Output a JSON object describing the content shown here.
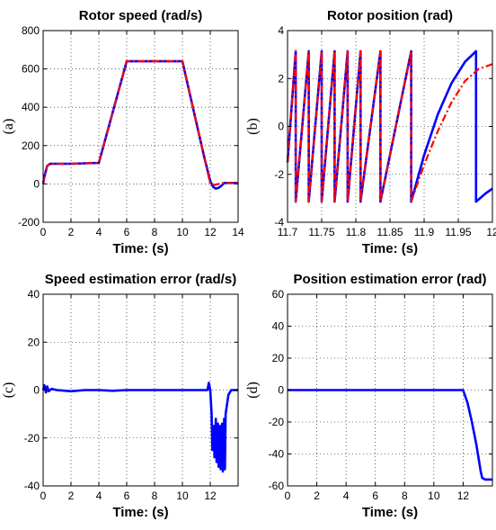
{
  "chart_data": [
    {
      "type": "line",
      "panel_label": "(a)",
      "title": "Rotor speed (rad/s)",
      "xlabel": "Time: (s)",
      "xlim": [
        0,
        14
      ],
      "ylim": [
        -200,
        800
      ],
      "xticks": [
        "0",
        "2",
        "4",
        "6",
        "8",
        "10",
        "12",
        "14"
      ],
      "yticks": [
        "-200",
        "0",
        "200",
        "400",
        "600",
        "800"
      ],
      "grid": true,
      "series": [
        {
          "color": "#0000ff",
          "style": "solid",
          "x": [
            0,
            0.1,
            0.3,
            0.5,
            2,
            4,
            6,
            10,
            11,
            11.6,
            12,
            12.2,
            12.4,
            12.6,
            12.8,
            13,
            13.5,
            14
          ],
          "y": [
            0,
            40,
            95,
            105,
            105,
            110,
            640,
            640,
            320,
            130,
            15,
            -15,
            -25,
            -20,
            -10,
            5,
            5,
            5
          ]
        },
        {
          "color": "#ff0000",
          "style": "dashdot",
          "x": [
            0,
            0.1,
            0.3,
            0.5,
            2,
            4,
            6,
            10,
            11,
            11.6,
            12,
            12.3,
            12.6,
            13,
            14
          ],
          "y": [
            0,
            40,
            95,
            105,
            105,
            110,
            640,
            640,
            320,
            130,
            0,
            -5,
            0,
            5,
            5
          ]
        }
      ]
    },
    {
      "type": "line",
      "panel_label": "(b)",
      "title": "Rotor position (rad)",
      "xlabel": "Time: (s)",
      "xlim": [
        11.7,
        12
      ],
      "ylim": [
        -4,
        4
      ],
      "xticks": [
        "11.7",
        "11.75",
        "11.8",
        "11.85",
        "11.9",
        "11.95",
        "12"
      ],
      "yticks": [
        "-4",
        "-2",
        "0",
        "2",
        "4"
      ],
      "grid": true,
      "series": [
        {
          "color": "#0000ff",
          "style": "solid",
          "x": [
            11.7,
            11.712,
            11.712,
            11.731,
            11.731,
            11.75,
            11.75,
            11.769,
            11.769,
            11.788,
            11.788,
            11.807,
            11.807,
            11.836,
            11.836,
            11.881,
            11.881,
            11.9,
            11.92,
            11.94,
            11.96,
            11.976,
            11.976,
            11.99,
            12
          ],
          "y": [
            -1.5,
            3.14,
            -3.14,
            3.14,
            -3.14,
            3.14,
            -3.14,
            3.14,
            -3.14,
            3.14,
            -3.14,
            3.14,
            -3.14,
            3.14,
            -3.14,
            3.14,
            -3.14,
            -1.2,
            0.5,
            1.8,
            2.7,
            3.14,
            -3.14,
            -2.8,
            -2.6
          ]
        },
        {
          "color": "#ff0000",
          "style": "dashdot",
          "x": [
            11.7,
            11.712,
            11.712,
            11.731,
            11.731,
            11.75,
            11.75,
            11.769,
            11.769,
            11.788,
            11.788,
            11.807,
            11.807,
            11.836,
            11.836,
            11.881,
            11.881,
            11.9,
            11.92,
            11.94,
            11.96,
            11.98,
            12
          ],
          "y": [
            -1.5,
            3.14,
            -3.14,
            3.14,
            -3.14,
            3.14,
            -3.14,
            3.14,
            -3.14,
            3.14,
            -3.14,
            3.14,
            -3.14,
            3.14,
            -3.14,
            3.14,
            -3.14,
            -1.6,
            -0.2,
            1.0,
            1.9,
            2.4,
            2.6
          ]
        }
      ]
    },
    {
      "type": "line",
      "panel_label": "(c)",
      "title": "Speed estimation error (rad/s)",
      "xlabel": "Time: (s)",
      "xlim": [
        0,
        14
      ],
      "ylim": [
        -40,
        40
      ],
      "xticks": [
        "0",
        "2",
        "4",
        "6",
        "8",
        "10",
        "12"
      ],
      "yticks": [
        "-40",
        "-20",
        "0",
        "20",
        "40"
      ],
      "grid": true,
      "series": [
        {
          "color": "#0000ff",
          "style": "solid",
          "x": [
            0,
            0.1,
            0.2,
            0.3,
            0.4,
            0.6,
            1,
            2,
            3,
            4,
            5,
            6,
            8,
            10,
            11.5,
            11.8,
            11.9,
            12.0,
            12.1,
            12.15,
            12.25,
            12.3,
            12.4,
            12.45,
            12.55,
            12.6,
            12.7,
            12.75,
            12.85,
            12.9,
            13.0,
            13.05,
            13.1,
            13.3,
            13.5,
            14
          ],
          "y": [
            0,
            2,
            -1,
            1.5,
            -0.5,
            0.5,
            0,
            -0.5,
            0,
            0,
            -0.3,
            0,
            0,
            0,
            0,
            0,
            3,
            0,
            -10,
            -25,
            -15,
            -28,
            -12,
            -30,
            -14,
            -32,
            -15,
            -33,
            -14,
            -34,
            -12,
            -33,
            -10,
            -2,
            0,
            0
          ]
        }
      ]
    },
    {
      "type": "line",
      "panel_label": "(d)",
      "title": "Position estimation error (rad)",
      "xlabel": "Time: (s)",
      "xlim": [
        0,
        14
      ],
      "ylim": [
        -60,
        60
      ],
      "xticks": [
        "0",
        "2",
        "4",
        "6",
        "8",
        "10",
        "12"
      ],
      "yticks": [
        "-60",
        "-40",
        "-20",
        "0",
        "20",
        "40",
        "60"
      ],
      "grid": true,
      "series": [
        {
          "color": "#0000ff",
          "style": "solid",
          "x": [
            0,
            2,
            4,
            6,
            8,
            10,
            12,
            12.3,
            12.6,
            12.9,
            13.1,
            13.2,
            13.3,
            13.5,
            14
          ],
          "y": [
            0,
            0,
            0,
            0,
            0,
            0,
            0,
            -8,
            -20,
            -34,
            -45,
            -51,
            -55,
            -56,
            -56
          ]
        }
      ]
    }
  ]
}
